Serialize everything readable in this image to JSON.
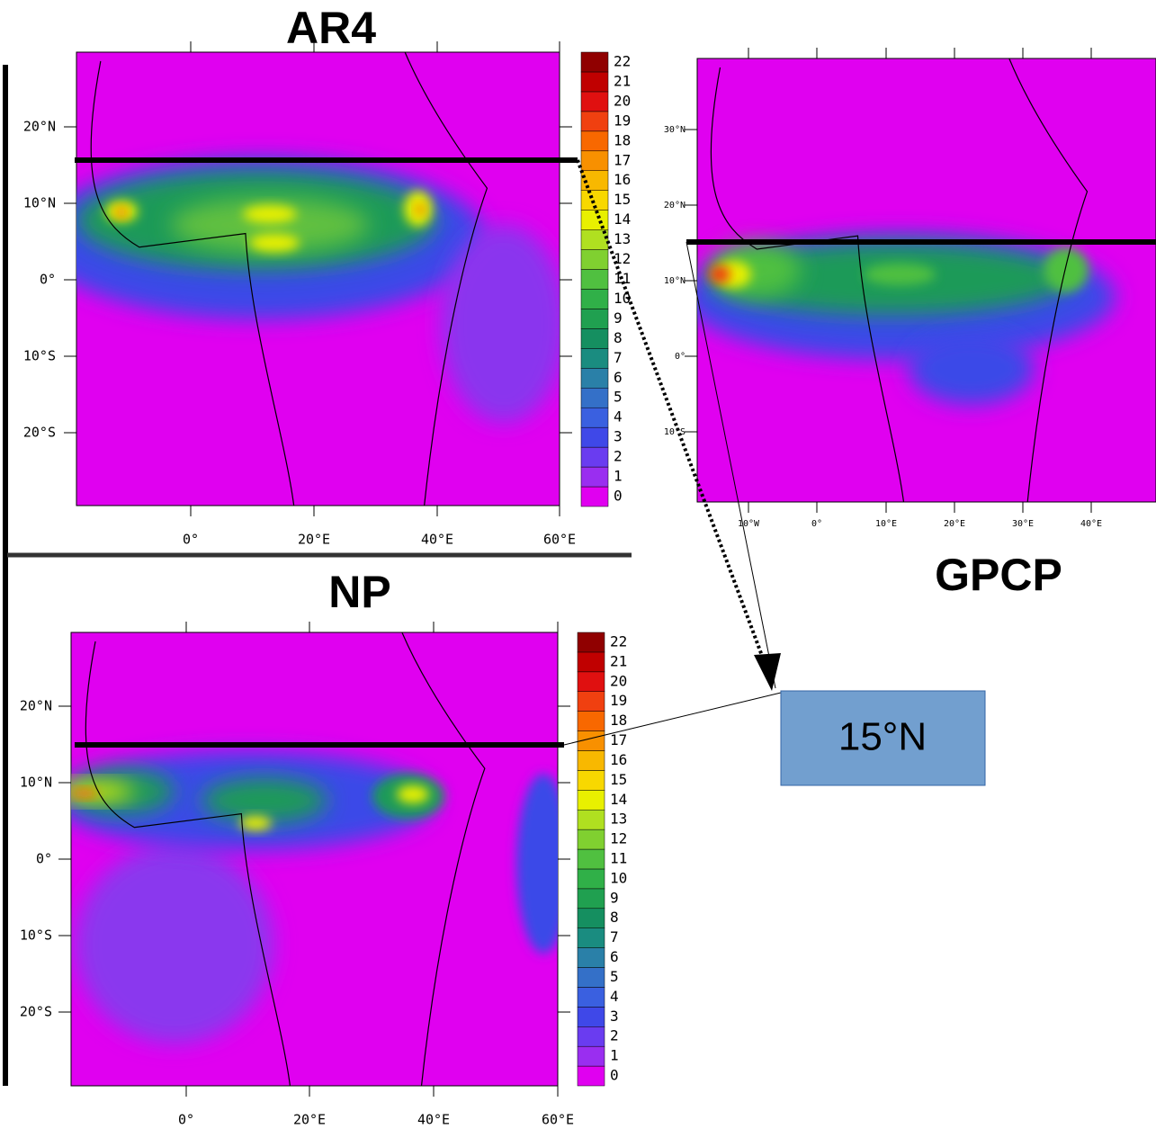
{
  "panels": [
    {
      "title": "AR4",
      "x_labels": [
        "0°",
        "20°E",
        "40°E",
        "60°E"
      ],
      "y_labels": [
        "20°N",
        "10°N",
        "0°",
        "10°S",
        "20°S"
      ],
      "colorbar_labels": [
        0,
        1,
        2,
        3,
        4,
        5,
        6,
        7,
        8,
        9,
        10,
        11,
        12,
        13,
        14,
        15,
        16,
        17,
        18,
        19,
        20,
        21,
        22
      ]
    },
    {
      "title": "NP",
      "x_labels": [
        "0°",
        "20°E",
        "40°E",
        "60°E"
      ],
      "y_labels": [
        "20°N",
        "10°N",
        "0°",
        "10°S",
        "20°S"
      ],
      "colorbar_labels": [
        0,
        1,
        2,
        3,
        4,
        5,
        6,
        7,
        8,
        9,
        10,
        11,
        12,
        13,
        14,
        15,
        16,
        17,
        18,
        19,
        20,
        21,
        22
      ]
    },
    {
      "title": "GPCP",
      "x_labels": [
        "10°W",
        "0°",
        "10°E",
        "20°E",
        "30°E",
        "40°E"
      ],
      "y_labels": [
        "30°N",
        "20°N",
        "10°N",
        "0°",
        "10°S"
      ]
    }
  ],
  "marker_label": "15°N"
}
